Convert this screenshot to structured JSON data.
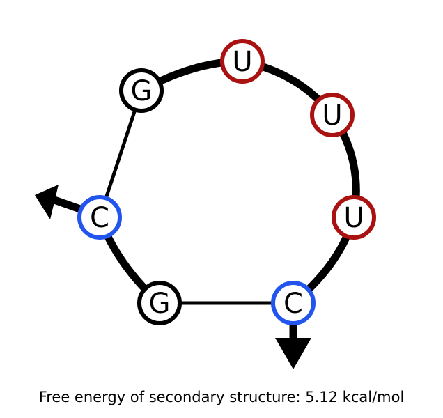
{
  "caption": "Free energy of secondary structure: 5.12 kcal/mol",
  "colors": {
    "background": "#ffffff",
    "backbone": "#000000",
    "ring_default": "#000000",
    "ring_uracil": "#aa1111",
    "ring_cytosine": "#2255ee",
    "arrow": "#000000"
  },
  "bases": [
    {
      "id": "g1",
      "letter": "G",
      "ring": "ring_default"
    },
    {
      "id": "u1",
      "letter": "U",
      "ring": "ring_uracil"
    },
    {
      "id": "u2",
      "letter": "U",
      "ring": "ring_uracil"
    },
    {
      "id": "u3",
      "letter": "U",
      "ring": "ring_uracil"
    },
    {
      "id": "c1",
      "letter": "C",
      "ring": "ring_cytosine"
    },
    {
      "id": "g2",
      "letter": "G",
      "ring": "ring_default"
    },
    {
      "id": "c2",
      "letter": "C",
      "ring": "ring_cytosine"
    }
  ],
  "arrows": [
    {
      "id": "left-arrow",
      "from_base": "c2",
      "direction": "left"
    },
    {
      "id": "down-arrow",
      "from_base": "c1",
      "direction": "down"
    }
  ]
}
